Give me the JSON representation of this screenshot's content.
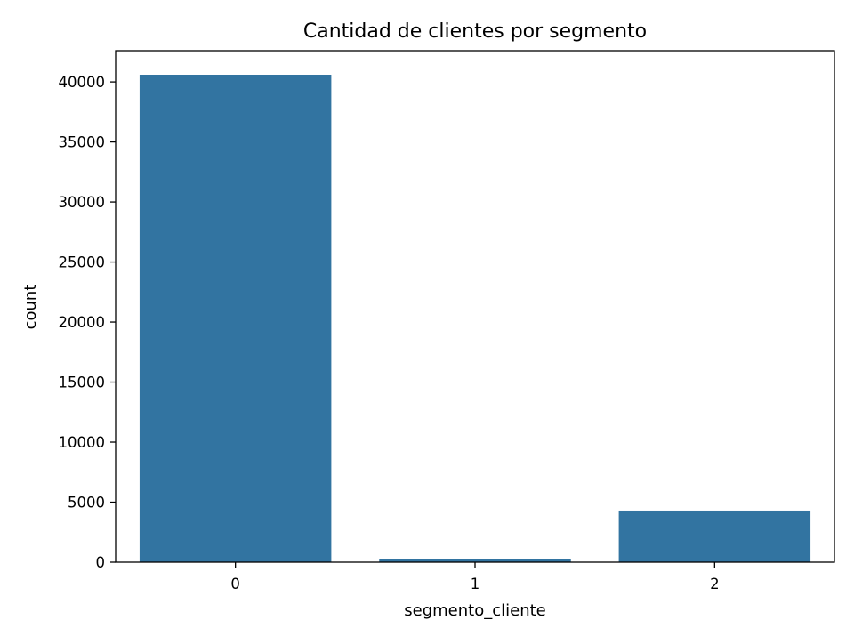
{
  "chart_data": {
    "type": "bar",
    "title": "Cantidad de clientes por segmento",
    "xlabel": "segmento_cliente",
    "ylabel": "count",
    "categories": [
      "0",
      "1",
      "2"
    ],
    "values": [
      40600,
      250,
      4300
    ],
    "ylim": [
      0,
      42600
    ],
    "yticks": [
      0,
      5000,
      10000,
      15000,
      20000,
      25000,
      30000,
      35000,
      40000
    ],
    "ytick_labels": [
      "0",
      "5000",
      "10000",
      "15000",
      "20000",
      "25000",
      "30000",
      "35000",
      "40000"
    ],
    "grid": false,
    "legend": "none",
    "bar_color": "#3274a1",
    "axes_color": "#000000"
  }
}
